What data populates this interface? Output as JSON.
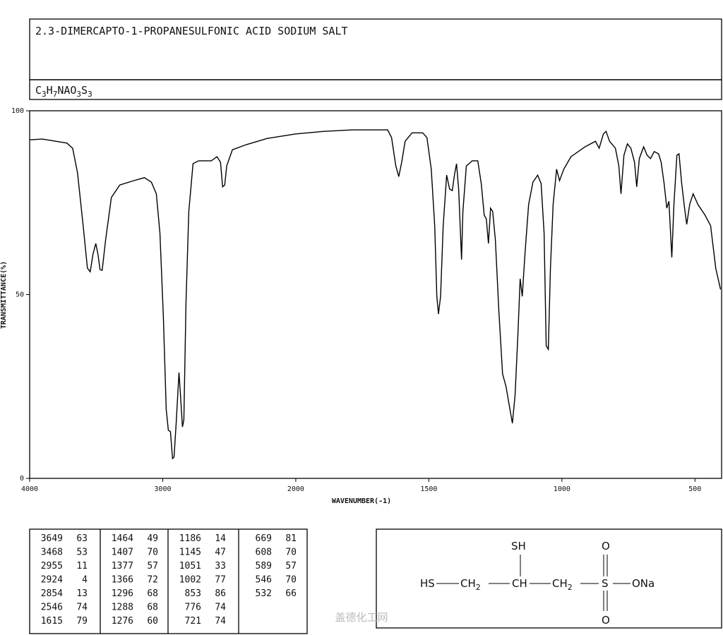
{
  "chart_data": {
    "type": "line",
    "title": "2.3-DIMERCAPTO-1-PROPANESULFONIC ACID SODIUM SALT",
    "formula": [
      "C",
      "3",
      "H",
      "7",
      "NAO",
      "3",
      "S",
      "3"
    ],
    "x_label": "WAVENUMBER(-1)",
    "y_label": "TRANSMITTANCE(%)",
    "xlim": [
      4000,
      400
    ],
    "xticks": [
      4000,
      3000,
      2000,
      1500,
      1000,
      500
    ],
    "x_scale_break": 2000,
    "ylim": [
      0,
      100
    ],
    "yticks": [
      0,
      50,
      100
    ],
    "color": "#000000",
    "x": [
      4000,
      3905,
      3720,
      3677,
      3640,
      3598,
      3566,
      3545,
      3524,
      3503,
      3487,
      3471,
      3455,
      3429,
      3386,
      3323,
      3217,
      3138,
      3085,
      3048,
      3021,
      2995,
      2974,
      2958,
      2942,
      2926,
      2915,
      2899,
      2878,
      2868,
      2852,
      2841,
      2825,
      2804,
      2772,
      2730,
      2635,
      2593,
      2566,
      2550,
      2534,
      2519,
      2476,
      2370,
      2212,
      2000,
      1894,
      1788,
      1655,
      1640,
      1624,
      1613,
      1602,
      1589,
      1563,
      1523,
      1507,
      1491,
      1478,
      1470,
      1464,
      1456,
      1446,
      1433,
      1422,
      1412,
      1404,
      1396,
      1388,
      1377,
      1372,
      1359,
      1337,
      1316,
      1303,
      1292,
      1284,
      1276,
      1268,
      1260,
      1250,
      1237,
      1223,
      1210,
      1200,
      1186,
      1176,
      1165,
      1157,
      1149,
      1139,
      1125,
      1109,
      1091,
      1078,
      1067,
      1059,
      1051,
      1043,
      1033,
      1020,
      1009,
      993,
      966,
      913,
      874,
      860,
      844,
      834,
      821,
      799,
      786,
      778,
      767,
      754,
      741,
      727,
      719,
      709,
      693,
      680,
      667,
      653,
      637,
      627,
      616,
      606,
      598,
      587,
      579,
      568,
      560,
      550,
      539,
      531,
      520,
      507,
      489,
      462,
      441,
      422,
      404
    ],
    "values": [
      92.1,
      92.3,
      91.2,
      89.8,
      83.1,
      68.7,
      57.2,
      56.2,
      61.0,
      63.9,
      61.0,
      56.8,
      56.6,
      64.9,
      76.4,
      79.8,
      81.0,
      81.8,
      80.6,
      77.4,
      66.8,
      43.8,
      18.8,
      13.1,
      12.7,
      5.4,
      5.8,
      15.0,
      28.8,
      23.6,
      14.0,
      15.9,
      47.6,
      72.6,
      85.6,
      86.4,
      86.4,
      87.5,
      86.0,
      79.3,
      79.8,
      85.0,
      89.4,
      90.8,
      92.5,
      93.7,
      94.4,
      94.8,
      94.8,
      92.7,
      85.0,
      82.1,
      86.0,
      91.7,
      94.0,
      94.0,
      92.7,
      84.1,
      68.7,
      49.5,
      44.7,
      49.5,
      68.7,
      82.5,
      78.7,
      78.3,
      82.5,
      85.6,
      78.7,
      59.5,
      72.6,
      85.0,
      86.4,
      86.4,
      80.2,
      71.6,
      70.6,
      63.9,
      73.5,
      72.6,
      64.9,
      45.7,
      28.4,
      25.0,
      20.7,
      15.0,
      22.6,
      39.9,
      54.3,
      49.5,
      61.0,
      74.5,
      80.6,
      82.5,
      80.2,
      66.8,
      36.1,
      35.1,
      57.2,
      74.5,
      84.1,
      81.0,
      84.1,
      87.5,
      90.2,
      91.7,
      89.8,
      93.7,
      94.4,
      91.7,
      89.8,
      85.0,
      77.4,
      87.9,
      91.0,
      89.8,
      86.0,
      79.3,
      87.0,
      90.2,
      87.9,
      87.0,
      88.9,
      88.3,
      86.0,
      80.2,
      73.5,
      75.4,
      60.1,
      74.5,
      87.9,
      88.3,
      80.2,
      73.5,
      69.1,
      74.5,
      77.4,
      74.5,
      71.6,
      68.7,
      57.2,
      51.4
    ]
  },
  "peak_table": [
    [
      [
        3649,
        63
      ],
      [
        3468,
        53
      ],
      [
        2955,
        11
      ],
      [
        2924,
        4
      ],
      [
        2854,
        13
      ],
      [
        2546,
        74
      ],
      [
        1615,
        79
      ]
    ],
    [
      [
        1464,
        49
      ],
      [
        1407,
        70
      ],
      [
        1377,
        57
      ],
      [
        1366,
        72
      ],
      [
        1296,
        68
      ],
      [
        1288,
        68
      ],
      [
        1276,
        60
      ]
    ],
    [
      [
        1186,
        14
      ],
      [
        1145,
        47
      ],
      [
        1051,
        33
      ],
      [
        1002,
        77
      ],
      [
        853,
        86
      ],
      [
        776,
        74
      ],
      [
        721,
        74
      ]
    ],
    [
      [
        669,
        81
      ],
      [
        608,
        70
      ],
      [
        589,
        57
      ],
      [
        546,
        70
      ],
      [
        532,
        66
      ]
    ]
  ],
  "structure": {
    "chain": [
      [
        "HS"
      ],
      [
        "CH",
        "2"
      ],
      [
        "CH"
      ],
      [
        "CH",
        "2"
      ],
      [
        "S"
      ],
      [
        "ONa"
      ]
    ],
    "branch": "SH",
    "o_top": "O",
    "o_bottom": "O"
  },
  "watermark": "盖德化工网"
}
